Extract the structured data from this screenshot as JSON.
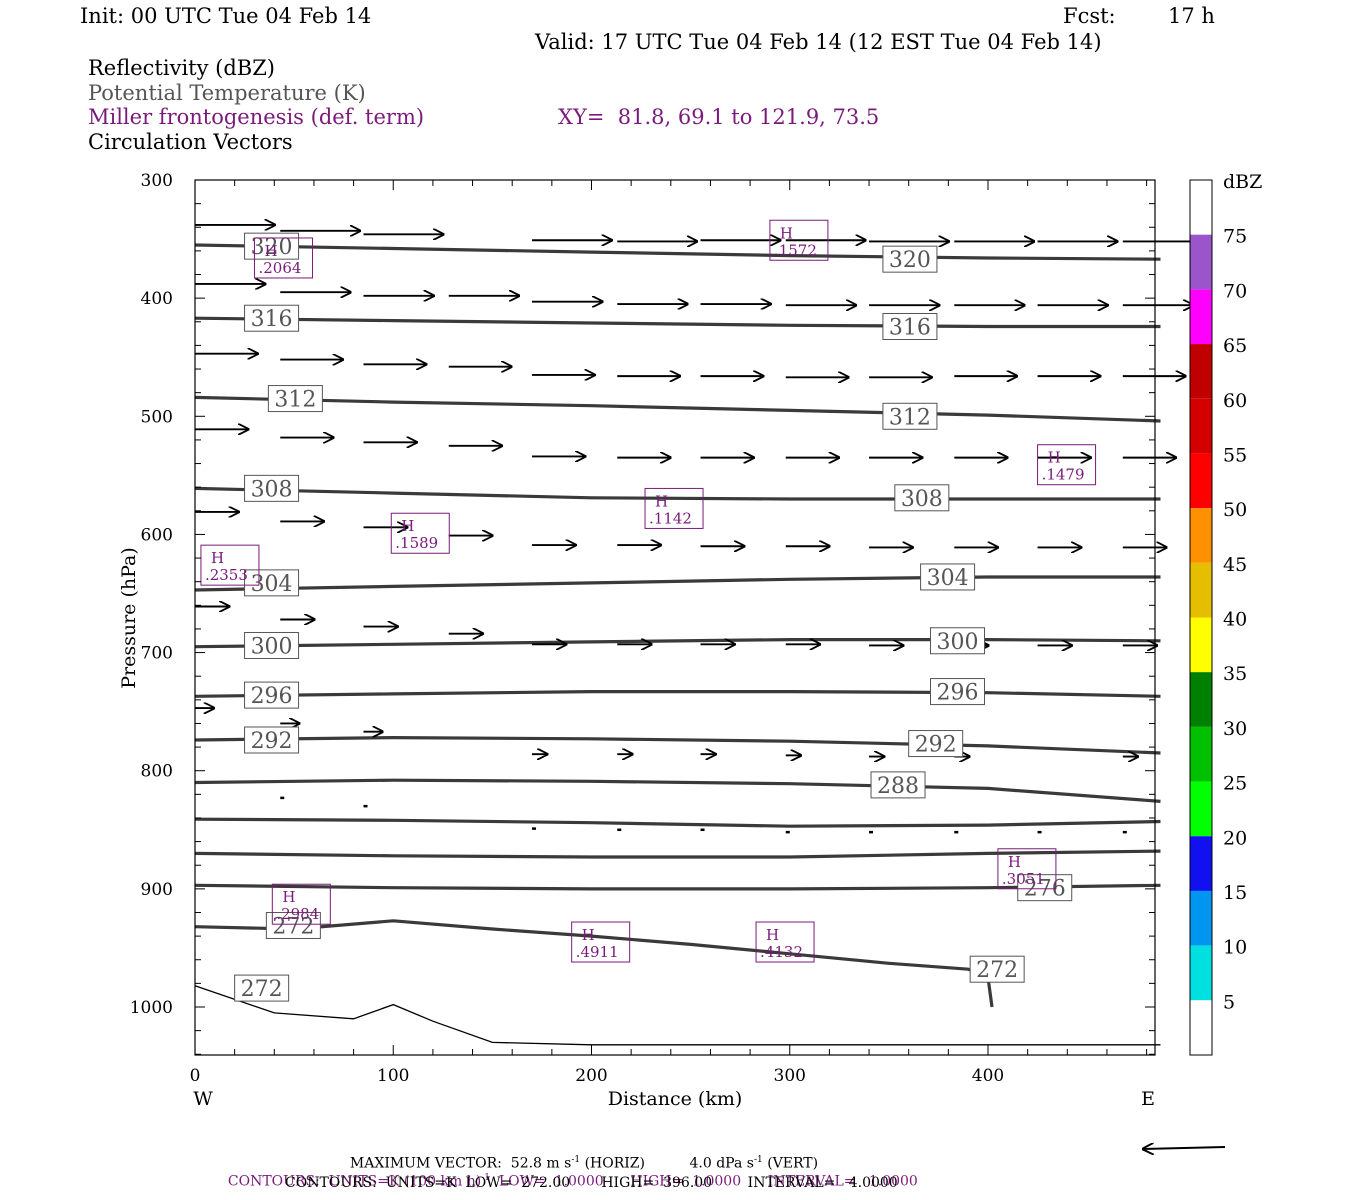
{
  "header": {
    "init": "Init: 00 UTC Tue 04 Feb 14",
    "fcst_label": "Fcst:",
    "fcst_value": "17 h",
    "valid": "Valid: 17 UTC Tue 04 Feb 14 (12 EST Tue 04 Feb 14)"
  },
  "fields": {
    "reflectivity": "Reflectivity (dBZ)",
    "theta": "Potential Temperature (K)",
    "frontogenesis": "Miller frontogenesis (def. term)",
    "xy": "XY=  81.8, 69.1 to 121.9, 73.5",
    "vectors": "Circulation Vectors"
  },
  "colors": {
    "frontogenesis": "#7a1a7a",
    "theta": "#3a3a3a",
    "theta_label": "#555555"
  },
  "footer": {
    "max_vector": "MAXIMUM VECTOR:  52.8 m s",
    "max_vector_horiz": "(HORIZ)",
    "max_vector_vert": "4.0 dPa s",
    "max_vector_vert_tag": "(VERT)",
    "sup": "-1",
    "contours1_a": "CONTOURS:  UNITS=K (100 km h)",
    "contours1_b": "LOW=  1.0000      HIGH=  1.0000      INTERVAL=   1.0000",
    "contours2": "CONTOURS:  UNITS=K  LOW=  272.00       HIGH=  396.00        INTERVAL=   4.0000"
  },
  "chart_data": {
    "type": "cross-section",
    "xlabel": "Distance (km)",
    "ylabel": "Pressure (hPa)",
    "x_ticks": [
      0,
      100,
      200,
      300,
      400
    ],
    "y_ticks": [
      300,
      400,
      500,
      600,
      700,
      800,
      900,
      1000
    ],
    "xlim": [
      0,
      487
    ],
    "ylim": [
      1040,
      300
    ],
    "x_left_label": "W",
    "x_right_label": "E",
    "grid": false,
    "colorbar": {
      "unit": "dBZ",
      "labels": [
        5,
        10,
        15,
        20,
        25,
        30,
        35,
        40,
        45,
        50,
        55,
        60,
        65,
        70,
        75
      ],
      "colors": [
        "#ffffff",
        "#00e0e0",
        "#0095f0",
        "#1010f0",
        "#00ff00",
        "#00c000",
        "#008000",
        "#ffff00",
        "#e6be00",
        "#ff9000",
        "#ff0000",
        "#d40000",
        "#c00000",
        "#ff00ff",
        "#9955c9",
        "#ffffff"
      ]
    },
    "theta_contours": [
      {
        "value": 320,
        "x": [
          0,
          100,
          200,
          300,
          400,
          487
        ],
        "p": [
          355,
          358,
          361,
          364,
          366,
          367
        ]
      },
      {
        "value": 316,
        "x": [
          0,
          100,
          200,
          300,
          400,
          487
        ],
        "p": [
          417,
          419,
          421,
          423,
          424,
          424
        ]
      },
      {
        "value": 312,
        "x": [
          0,
          100,
          200,
          300,
          400,
          487
        ],
        "p": [
          484,
          488,
          491,
          495,
          499,
          504
        ]
      },
      {
        "value": 308,
        "x": [
          0,
          100,
          200,
          300,
          400,
          487
        ],
        "p": [
          561,
          565,
          569,
          570,
          570,
          570
        ]
      },
      {
        "value": 304,
        "x": [
          0,
          100,
          200,
          300,
          400,
          487
        ],
        "p": [
          647,
          644,
          641,
          638,
          636,
          636
        ]
      },
      {
        "value": 300,
        "x": [
          0,
          100,
          200,
          300,
          400,
          487
        ],
        "p": [
          695,
          693,
          691,
          689,
          689,
          690
        ]
      },
      {
        "value": 296,
        "x": [
          0,
          100,
          200,
          300,
          400,
          487
        ],
        "p": [
          737,
          735,
          733,
          733,
          734,
          737
        ]
      },
      {
        "value": 292,
        "x": [
          0,
          100,
          200,
          300,
          400,
          487
        ],
        "p": [
          774,
          772,
          773,
          775,
          779,
          785
        ]
      },
      {
        "value": 288,
        "x": [
          0,
          100,
          200,
          300,
          400,
          487
        ],
        "p": [
          810,
          808,
          809,
          811,
          815,
          826
        ]
      },
      {
        "value": 284,
        "x": [
          0,
          100,
          200,
          300,
          400,
          487
        ],
        "p": [
          841,
          842,
          844,
          847,
          846,
          843
        ]
      },
      {
        "value": 280,
        "x": [
          0,
          100,
          200,
          300,
          400,
          487
        ],
        "p": [
          870,
          872,
          873,
          873,
          870,
          868
        ]
      },
      {
        "value": 276,
        "x": [
          0,
          100,
          200,
          300,
          400,
          487
        ],
        "p": [
          897,
          899,
          900,
          900,
          899,
          897
        ]
      },
      {
        "value": 272,
        "x": [
          0,
          50,
          100,
          150,
          200,
          250,
          300,
          350,
          390,
          400,
          402
        ],
        "p": [
          932,
          934,
          927,
          934,
          940,
          947,
          955,
          963,
          968,
          975,
          1000
        ]
      }
    ],
    "surface_line": {
      "x": [
        0,
        40,
        80,
        100,
        120,
        150,
        200,
        300,
        400,
        487
      ],
      "p": [
        982,
        1005,
        1010,
        998,
        1012,
        1030,
        1032,
        1032,
        1032,
        1032
      ]
    },
    "theta_labels": [
      {
        "text": "320",
        "x": 25,
        "p": 356
      },
      {
        "text": "320",
        "x": 347,
        "p": 367
      },
      {
        "text": "316",
        "x": 25,
        "p": 417
      },
      {
        "text": "316",
        "x": 347,
        "p": 424
      },
      {
        "text": "312",
        "x": 37,
        "p": 485
      },
      {
        "text": "312",
        "x": 347,
        "p": 500
      },
      {
        "text": "308",
        "x": 25,
        "p": 561
      },
      {
        "text": "308",
        "x": 353,
        "p": 569
      },
      {
        "text": "304",
        "x": 25,
        "p": 641
      },
      {
        "text": "304",
        "x": 366,
        "p": 636
      },
      {
        "text": "300",
        "x": 25,
        "p": 694
      },
      {
        "text": "300",
        "x": 371,
        "p": 690
      },
      {
        "text": "296",
        "x": 25,
        "p": 736
      },
      {
        "text": "296",
        "x": 371,
        "p": 733
      },
      {
        "text": "292",
        "x": 25,
        "p": 774
      },
      {
        "text": "292",
        "x": 360,
        "p": 777
      },
      {
        "text": "288",
        "x": 341,
        "p": 812
      },
      {
        "text": "276",
        "x": 415,
        "p": 899
      },
      {
        "text": "272",
        "x": 36,
        "p": 931
      },
      {
        "text": "272",
        "x": 391,
        "p": 968
      },
      {
        "text": "272",
        "x": 20,
        "p": 984
      }
    ],
    "frontogenesis_maxima": [
      {
        "label": "H",
        "value": ".2064",
        "x": 30,
        "p": 366
      },
      {
        "label": "H",
        "value": ".1572",
        "x": 290,
        "p": 351
      },
      {
        "label": "H",
        "value": ".1479",
        "x": 425,
        "p": 541
      },
      {
        "label": "H",
        "value": ".1142",
        "x": 227,
        "p": 578
      },
      {
        "label": "H",
        "value": ".1589",
        "x": 99,
        "p": 599
      },
      {
        "label": "H",
        "value": ".2353",
        "x": 3,
        "p": 626
      },
      {
        "label": "H",
        "value": ".2984",
        "x": 39,
        "p": 913
      },
      {
        "label": "H",
        "value": ".3051",
        "x": 405,
        "p": 883
      },
      {
        "label": "H",
        "value": ".4911",
        "x": 190,
        "p": 945
      },
      {
        "label": "H",
        "value": ".4132",
        "x": 283,
        "p": 945
      }
    ],
    "vectors": [
      {
        "x": 0,
        "p": 338,
        "u": 42,
        "w": 0
      },
      {
        "x": 43,
        "p": 343,
        "u": 42,
        "w": 0
      },
      {
        "x": 85,
        "p": 346,
        "u": 42,
        "w": 0
      },
      {
        "x": 170,
        "p": 351,
        "u": 42,
        "w": 0
      },
      {
        "x": 213,
        "p": 352,
        "u": 42,
        "w": 0
      },
      {
        "x": 255,
        "p": 351,
        "u": 42,
        "w": 0
      },
      {
        "x": 298,
        "p": 351,
        "u": 42,
        "w": 0
      },
      {
        "x": 340,
        "p": 352,
        "u": 42,
        "w": 0
      },
      {
        "x": 383,
        "p": 352,
        "u": 42,
        "w": 0
      },
      {
        "x": 425,
        "p": 352,
        "u": 42,
        "w": 0
      },
      {
        "x": 468,
        "p": 352,
        "u": 42,
        "w": 0
      },
      {
        "x": 0,
        "p": 388,
        "u": 37,
        "w": 0
      },
      {
        "x": 43,
        "p": 395,
        "u": 37,
        "w": 0
      },
      {
        "x": 85,
        "p": 398,
        "u": 37,
        "w": 0
      },
      {
        "x": 128,
        "p": 398,
        "u": 37,
        "w": 0
      },
      {
        "x": 170,
        "p": 403,
        "u": 37,
        "w": 0
      },
      {
        "x": 213,
        "p": 405,
        "u": 37,
        "w": 0
      },
      {
        "x": 255,
        "p": 405,
        "u": 37,
        "w": 0
      },
      {
        "x": 298,
        "p": 406,
        "u": 37,
        "w": 0
      },
      {
        "x": 340,
        "p": 406,
        "u": 37,
        "w": 0
      },
      {
        "x": 383,
        "p": 406,
        "u": 37,
        "w": 0
      },
      {
        "x": 425,
        "p": 406,
        "u": 37,
        "w": 0
      },
      {
        "x": 468,
        "p": 406,
        "u": 37,
        "w": 0
      },
      {
        "x": 0,
        "p": 447,
        "u": 33,
        "w": 0
      },
      {
        "x": 43,
        "p": 452,
        "u": 33,
        "w": 0
      },
      {
        "x": 85,
        "p": 456,
        "u": 33,
        "w": 0
      },
      {
        "x": 128,
        "p": 458,
        "u": 33,
        "w": 0
      },
      {
        "x": 170,
        "p": 465,
        "u": 33,
        "w": 0
      },
      {
        "x": 213,
        "p": 466,
        "u": 33,
        "w": 0
      },
      {
        "x": 255,
        "p": 466,
        "u": 33,
        "w": 0
      },
      {
        "x": 298,
        "p": 467,
        "u": 33,
        "w": 0
      },
      {
        "x": 340,
        "p": 467,
        "u": 33,
        "w": 0
      },
      {
        "x": 383,
        "p": 466,
        "u": 33,
        "w": 0
      },
      {
        "x": 425,
        "p": 466,
        "u": 33,
        "w": 0
      },
      {
        "x": 468,
        "p": 466,
        "u": 33,
        "w": 0
      },
      {
        "x": 0,
        "p": 511,
        "u": 28,
        "w": 0
      },
      {
        "x": 43,
        "p": 518,
        "u": 28,
        "w": 0
      },
      {
        "x": 85,
        "p": 522,
        "u": 28,
        "w": 0
      },
      {
        "x": 128,
        "p": 525,
        "u": 28,
        "w": 0
      },
      {
        "x": 170,
        "p": 534,
        "u": 28,
        "w": 0
      },
      {
        "x": 213,
        "p": 535,
        "u": 28,
        "w": 0
      },
      {
        "x": 255,
        "p": 535,
        "u": 28,
        "w": 0
      },
      {
        "x": 298,
        "p": 535,
        "u": 28,
        "w": 0
      },
      {
        "x": 340,
        "p": 535,
        "u": 28,
        "w": 0
      },
      {
        "x": 383,
        "p": 535,
        "u": 28,
        "w": 0
      },
      {
        "x": 425,
        "p": 535,
        "u": 28,
        "w": 0
      },
      {
        "x": 468,
        "p": 535,
        "u": 28,
        "w": 0
      },
      {
        "x": 0,
        "p": 581,
        "u": 23,
        "w": 0
      },
      {
        "x": 43,
        "p": 589,
        "u": 23,
        "w": 0
      },
      {
        "x": 85,
        "p": 594,
        "u": 23,
        "w": 0
      },
      {
        "x": 128,
        "p": 601,
        "u": 23,
        "w": 0
      },
      {
        "x": 170,
        "p": 609,
        "u": 23,
        "w": 0
      },
      {
        "x": 213,
        "p": 609,
        "u": 23,
        "w": 0
      },
      {
        "x": 255,
        "p": 610,
        "u": 23,
        "w": 0
      },
      {
        "x": 298,
        "p": 610,
        "u": 23,
        "w": 0
      },
      {
        "x": 340,
        "p": 611,
        "u": 23,
        "w": 0
      },
      {
        "x": 383,
        "p": 611,
        "u": 23,
        "w": 0
      },
      {
        "x": 425,
        "p": 611,
        "u": 23,
        "w": 0
      },
      {
        "x": 468,
        "p": 611,
        "u": 23,
        "w": 0
      },
      {
        "x": 0,
        "p": 661,
        "u": 18,
        "w": 0
      },
      {
        "x": 43,
        "p": 672,
        "u": 18,
        "w": 0
      },
      {
        "x": 85,
        "p": 678,
        "u": 18,
        "w": 0
      },
      {
        "x": 128,
        "p": 684,
        "u": 18,
        "w": 0
      },
      {
        "x": 170,
        "p": 693,
        "u": 18,
        "w": 0
      },
      {
        "x": 213,
        "p": 693,
        "u": 18,
        "w": 0
      },
      {
        "x": 255,
        "p": 693,
        "u": 18,
        "w": 0
      },
      {
        "x": 298,
        "p": 693,
        "u": 18,
        "w": 0
      },
      {
        "x": 340,
        "p": 694,
        "u": 18,
        "w": 0
      },
      {
        "x": 383,
        "p": 694,
        "u": 18,
        "w": 0
      },
      {
        "x": 425,
        "p": 694,
        "u": 18,
        "w": 0
      },
      {
        "x": 468,
        "p": 694,
        "u": 18,
        "w": 0
      },
      {
        "x": 0,
        "p": 747,
        "u": 10,
        "w": 0
      },
      {
        "x": 43,
        "p": 760,
        "u": 10,
        "w": 0
      },
      {
        "x": 85,
        "p": 767,
        "u": 10,
        "w": 0
      },
      {
        "x": 170,
        "p": 786,
        "u": 8,
        "w": 0
      },
      {
        "x": 213,
        "p": 786,
        "u": 8,
        "w": 0
      },
      {
        "x": 255,
        "p": 786,
        "u": 8,
        "w": 0
      },
      {
        "x": 298,
        "p": 787,
        "u": 8,
        "w": 0
      },
      {
        "x": 340,
        "p": 788,
        "u": 8,
        "w": 0
      },
      {
        "x": 383,
        "p": 788,
        "u": 8,
        "w": 0
      },
      {
        "x": 468,
        "p": 788,
        "u": 8,
        "w": 0
      },
      {
        "x": 43,
        "p": 823,
        "u": 3,
        "w": 0
      },
      {
        "x": 85,
        "p": 830,
        "u": 3,
        "w": 0
      },
      {
        "x": 170,
        "p": 849,
        "u": 3,
        "w": 0
      },
      {
        "x": 213,
        "p": 850,
        "u": 3,
        "w": 0
      },
      {
        "x": 255,
        "p": 850,
        "u": 3,
        "w": 0
      },
      {
        "x": 298,
        "p": 852,
        "u": 3,
        "w": 0
      },
      {
        "x": 340,
        "p": 852,
        "u": 3,
        "w": 0
      },
      {
        "x": 383,
        "p": 852,
        "u": 3,
        "w": 0
      },
      {
        "x": 425,
        "p": 852,
        "u": 3,
        "w": 0
      },
      {
        "x": 468,
        "p": 852,
        "u": 3,
        "w": 0
      }
    ],
    "reference_vector": {
      "direction": "west"
    }
  }
}
